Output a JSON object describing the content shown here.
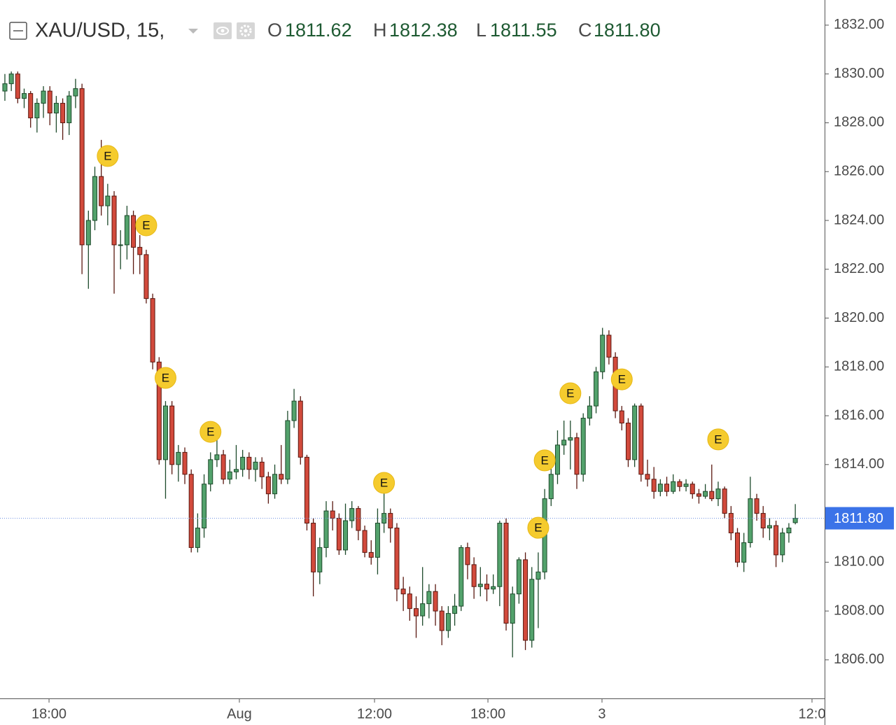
{
  "chart_data": {
    "type": "candlestick",
    "title": "XAU/USD, 15,",
    "ohlc_legend": [
      {
        "key": "O",
        "value": 1811.62
      },
      {
        "key": "H",
        "value": 1812.38
      },
      {
        "key": "L",
        "value": 1811.55
      },
      {
        "key": "C",
        "value": {
          "value": 1811.8,
          "label": "1811.80"
        }
      }
    ],
    "open": [
      1829.3,
      1829.6,
      1830.0,
      1829.0,
      1829.2,
      1828.2,
      1828.8,
      1829.3,
      1828.4,
      1828.8,
      1828.0,
      1829.1,
      1829.4,
      1823.0,
      1824.0,
      1825.8,
      1824.6,
      1825.0,
      1823.0,
      1823.0,
      1824.2,
      1822.9,
      1822.6,
      1820.8,
      1818.2,
      1814.2,
      1816.4,
      1814.0,
      1814.5,
      1813.6,
      1810.6,
      1811.4,
      1813.2,
      1814.2,
      1814.4,
      1813.4,
      1813.7,
      1813.8,
      1814.3,
      1813.8,
      1814.1,
      1813.5,
      1812.8,
      1813.6,
      1813.4,
      1815.8,
      1816.6,
      1814.3,
      1811.6,
      1809.6,
      1810.6,
      1812.1,
      1811.8,
      1810.5,
      1811.7,
      1812.2,
      1811.3,
      1810.4,
      1810.2,
      1811.6,
      1812.0,
      1811.4,
      1808.9,
      1808.7,
      1808.1,
      1807.8,
      1808.3,
      1808.8,
      1808.0,
      1807.2,
      1807.9,
      1808.2,
      1810.6,
      1809.9,
      1809.0,
      1809.1,
      1808.9,
      1809.0,
      1811.6,
      1807.5,
      1808.7,
      1810.1,
      1806.8,
      1809.3,
      1809.6,
      1812.6,
      1813.6,
      1814.8,
      1815.0,
      1815.1,
      1813.6,
      1815.9,
      1816.4,
      1817.8,
      1819.3,
      1818.4,
      1816.2,
      1815.7,
      1814.2,
      1816.4,
      1813.6,
      1813.4,
      1812.9,
      1813.2,
      1812.9,
      1813.3,
      1813.1,
      1813.2,
      1812.8,
      1812.7,
      1812.9,
      1812.6,
      1813.0,
      1812.0,
      1811.2,
      1810.0,
      1810.8,
      1812.6,
      1812.0,
      1811.4,
      1811.5,
      1810.3,
      1811.2,
      1811.62
    ],
    "high": [
      1830.0,
      1830.1,
      1830.1,
      1829.4,
      1829.3,
      1829.0,
      1829.5,
      1829.5,
      1829.1,
      1829.0,
      1829.3,
      1829.8,
      1829.6,
      1824.4,
      1826.2,
      1827.3,
      1825.5,
      1825.2,
      1823.6,
      1824.6,
      1824.4,
      1823.4,
      1822.8,
      1821.0,
      1818.4,
      1816.6,
      1816.6,
      1814.8,
      1814.7,
      1813.8,
      1812.0,
      1813.6,
      1814.5,
      1815.1,
      1814.6,
      1814.2,
      1814.8,
      1814.6,
      1814.5,
      1814.3,
      1814.3,
      1813.7,
      1814.0,
      1814.8,
      1816.2,
      1817.1,
      1816.8,
      1814.4,
      1811.8,
      1811.0,
      1812.5,
      1812.5,
      1812.0,
      1812.4,
      1812.5,
      1812.3,
      1811.5,
      1810.9,
      1812.2,
      1813.2,
      1812.2,
      1811.6,
      1809.4,
      1809.0,
      1808.6,
      1809.8,
      1809.1,
      1809.1,
      1808.2,
      1808.2,
      1808.7,
      1810.7,
      1810.8,
      1810.2,
      1809.8,
      1809.5,
      1809.5,
      1811.7,
      1811.8,
      1809.0,
      1810.2,
      1810.4,
      1809.8,
      1810.4,
      1813.0,
      1814.0,
      1815.4,
      1815.8,
      1815.8,
      1815.3,
      1816.1,
      1816.8,
      1818.0,
      1819.6,
      1819.5,
      1818.6,
      1816.4,
      1815.9,
      1816.5,
      1816.5,
      1814.2,
      1813.9,
      1813.4,
      1813.5,
      1813.6,
      1813.4,
      1813.4,
      1813.3,
      1813.0,
      1813.2,
      1814.0,
      1813.3,
      1813.1,
      1812.3,
      1811.4,
      1811.2,
      1813.5,
      1812.8,
      1812.3,
      1811.8,
      1811.7,
      1811.4,
      1811.6,
      1812.38
    ],
    "low": [
      1828.9,
      1829.3,
      1828.8,
      1828.6,
      1827.8,
      1827.6,
      1828.2,
      1827.9,
      1827.6,
      1827.3,
      1827.5,
      1828.6,
      1821.8,
      1821.2,
      1823.6,
      1824.2,
      1823.8,
      1821.0,
      1822.0,
      1822.4,
      1821.8,
      1821.8,
      1820.6,
      1817.9,
      1814.0,
      1812.6,
      1813.6,
      1813.3,
      1813.2,
      1810.4,
      1810.4,
      1811.0,
      1812.9,
      1813.9,
      1813.2,
      1813.2,
      1813.4,
      1813.5,
      1813.4,
      1813.3,
      1813.0,
      1812.4,
      1812.6,
      1813.2,
      1813.2,
      1815.5,
      1814.0,
      1811.3,
      1808.6,
      1809.1,
      1810.2,
      1811.3,
      1810.3,
      1810.3,
      1811.4,
      1810.9,
      1810.2,
      1809.9,
      1809.5,
      1811.2,
      1810.8,
      1808.4,
      1808.0,
      1807.6,
      1806.9,
      1807.4,
      1807.7,
      1807.4,
      1806.6,
      1806.9,
      1807.4,
      1808.0,
      1809.3,
      1808.5,
      1808.6,
      1808.4,
      1808.7,
      1808.2,
      1807.2,
      1806.1,
      1808.3,
      1806.4,
      1806.5,
      1807.3,
      1809.3,
      1812.3,
      1813.2,
      1814.4,
      1813.8,
      1813.0,
      1813.3,
      1815.6,
      1816.1,
      1817.5,
      1818.1,
      1815.9,
      1815.4,
      1813.9,
      1813.9,
      1813.3,
      1813.1,
      1812.6,
      1812.7,
      1812.7,
      1812.8,
      1812.9,
      1812.9,
      1812.6,
      1812.4,
      1812.6,
      1812.5,
      1812.3,
      1811.8,
      1810.9,
      1809.8,
      1809.6,
      1810.6,
      1811.7,
      1811.0,
      1810.9,
      1809.8,
      1810.0,
      1810.8,
      1811.55
    ],
    "close": [
      1829.6,
      1830.0,
      1829.0,
      1829.2,
      1828.2,
      1828.8,
      1829.3,
      1828.4,
      1828.8,
      1828.0,
      1829.1,
      1829.4,
      1823.0,
      1824.0,
      1825.8,
      1824.6,
      1825.0,
      1823.0,
      1823.0,
      1824.2,
      1822.9,
      1822.6,
      1820.8,
      1818.2,
      1814.2,
      1816.4,
      1814.0,
      1814.5,
      1813.6,
      1810.6,
      1811.4,
      1813.2,
      1814.2,
      1814.4,
      1813.4,
      1813.7,
      1813.8,
      1814.3,
      1813.8,
      1814.1,
      1813.5,
      1812.8,
      1813.6,
      1813.4,
      1815.8,
      1816.6,
      1814.3,
      1811.6,
      1809.6,
      1810.6,
      1812.1,
      1811.8,
      1810.5,
      1811.7,
      1812.2,
      1811.3,
      1810.4,
      1810.2,
      1811.6,
      1812.0,
      1811.4,
      1808.9,
      1808.7,
      1808.1,
      1807.8,
      1808.3,
      1808.8,
      1808.0,
      1807.2,
      1807.9,
      1808.2,
      1810.6,
      1809.9,
      1809.0,
      1809.1,
      1808.9,
      1809.0,
      1811.6,
      1807.5,
      1808.7,
      1810.1,
      1806.8,
      1809.3,
      1809.6,
      1812.6,
      1813.6,
      1814.8,
      1815.0,
      1815.1,
      1813.6,
      1815.9,
      1816.4,
      1817.8,
      1819.3,
      1818.4,
      1816.2,
      1815.7,
      1814.2,
      1816.4,
      1813.6,
      1813.4,
      1812.9,
      1813.2,
      1812.9,
      1813.3,
      1813.1,
      1813.2,
      1812.8,
      1812.7,
      1812.9,
      1812.6,
      1813.0,
      1812.0,
      1811.2,
      1810.0,
      1810.8,
      1812.6,
      1812.0,
      1811.4,
      1811.5,
      1810.3,
      1811.2,
      1811.4,
      1811.8
    ],
    "up_color": "#53a26c",
    "down_color": "#d24a3c",
    "events": [
      {
        "x": 16,
        "y": 1826.64,
        "label": "E"
      },
      {
        "x": 22,
        "y": 1823.8,
        "label": "E"
      },
      {
        "x": 25,
        "y": 1817.55,
        "label": "E"
      },
      {
        "x": 32,
        "y": 1815.34,
        "label": "E"
      },
      {
        "x": 59,
        "y": 1813.25,
        "label": "E"
      },
      {
        "x": 83,
        "y": 1811.41,
        "label": "E"
      },
      {
        "x": 84,
        "y": 1814.17,
        "label": "E"
      },
      {
        "x": 88,
        "y": 1816.92,
        "label": "E"
      },
      {
        "x": 96,
        "y": 1817.49,
        "label": "E"
      },
      {
        "x": 111,
        "y": 1815.03,
        "label": "E"
      }
    ],
    "last_price": {
      "value": 1811.8,
      "label": "1811.80"
    },
    "xlim": [
      -0.76,
      127.56
    ],
    "xticks": [
      {
        "value": 6.87,
        "label": "18:00"
      },
      {
        "value": 36.49,
        "label": "Aug"
      },
      {
        "value": 57.52,
        "label": "12:00"
      },
      {
        "value": 75.17,
        "label": "18:00"
      },
      {
        "value": 92.92,
        "label": "3"
      },
      {
        "value": 125.6,
        "label": "12:0"
      }
    ],
    "ylim": [
      1804.42,
      1833.03
    ],
    "yticks": [
      {
        "value": 1806,
        "label": "1806.00"
      },
      {
        "value": 1808,
        "label": "1808.00"
      },
      {
        "value": 1810,
        "label": "1810.00"
      },
      {
        "value": 1812,
        "label": "1812.00"
      },
      {
        "value": 1814,
        "label": "1814.00"
      },
      {
        "value": 1816,
        "label": "1816.00"
      },
      {
        "value": 1818,
        "label": "1818.00"
      },
      {
        "value": 1820,
        "label": "1820.00"
      },
      {
        "value": 1822,
        "label": "1822.00"
      },
      {
        "value": 1824,
        "label": "1824.00"
      },
      {
        "value": 1826,
        "label": "1826.00"
      },
      {
        "value": 1828,
        "label": "1828.00"
      },
      {
        "value": 1830,
        "label": "1830.00"
      },
      {
        "value": 1832,
        "label": "1832.00"
      }
    ],
    "grid": false
  }
}
